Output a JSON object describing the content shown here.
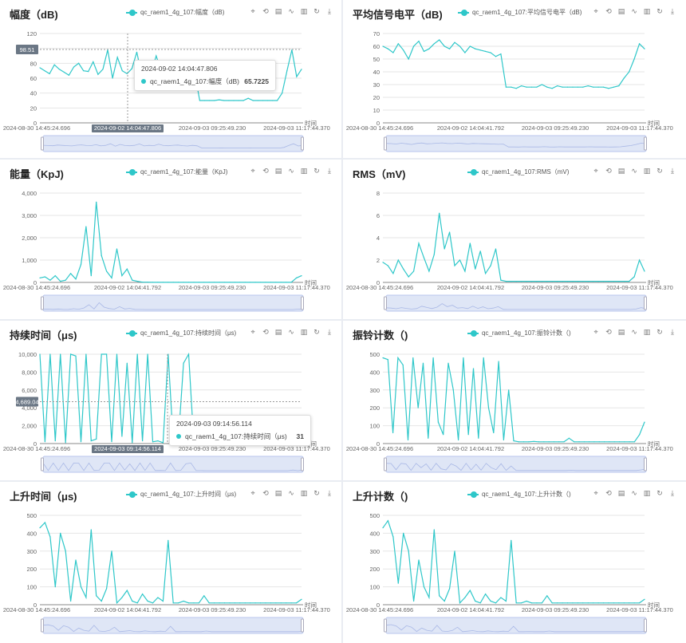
{
  "tools": [
    "zoom-icon",
    "zoom-reset-icon",
    "data-view-icon",
    "line-type-icon",
    "bar-type-icon",
    "restore-icon",
    "download-icon"
  ],
  "panels": [
    {
      "title": "幅度（dB)",
      "legend": "qc_raem1_4g_107:幅度（dB)",
      "y_ticks": [
        "120",
        "100",
        "80",
        "60",
        "40",
        "20",
        "0"
      ],
      "x_labels": [
        "2024-08-30 14:45:24.696",
        "2024-09-02 14:04:47.806",
        "2024-09-03 09:25:49.230",
        "2024-09-03 11:17:44.370"
      ],
      "x_axis_name": "时间",
      "pointer_value": "98.51",
      "tooltip": {
        "time": "2024-09-02 14:04:47.806",
        "series": "qc_raem1_4g_107:幅度（dB)",
        "value": "65.7225"
      }
    },
    {
      "title": "平均信号电平（dB)",
      "legend": "qc_raem1_4g_107:平均信号电平（dB)",
      "y_ticks": [
        "70",
        "60",
        "50",
        "40",
        "30",
        "20",
        "10",
        "0"
      ],
      "x_labels": [
        "2024-08-30 14:45:24.696",
        "2024-09-02 14:04:41.792",
        "2024-09-03 09:25:49.230",
        "2024-09-03 11:17:44.370"
      ],
      "x_axis_name": "时间"
    },
    {
      "title": "能量（KpJ)",
      "legend": "qc_raem1_4g_107:能量（KpJ)",
      "y_ticks": [
        "4,000",
        "3,000",
        "2,000",
        "1,000",
        "0"
      ],
      "x_labels": [
        "2024-08-30 14:45:24.696",
        "2024-09-02 14:04:41.792",
        "2024-09-03 09:25:49.230",
        "2024-09-03 11:17:44.370"
      ],
      "x_axis_name": "时间"
    },
    {
      "title": "RMS（mV)",
      "legend": "qc_raem1_4g_107:RMS（mV)",
      "y_ticks": [
        "8",
        "6",
        "4",
        "2",
        "0"
      ],
      "x_labels": [
        "2024-08-30 14:45:24.696",
        "2024-09-02 14:04:41.792",
        "2024-09-03 09:25:49.230",
        "2024-09-03 11:17:44.370"
      ],
      "x_axis_name": "时间"
    },
    {
      "title": "持续时间（μs)",
      "legend": "qc_raem1_4g_107:持续时间（μs)",
      "y_ticks": [
        "10,000",
        "8,000",
        "6,000",
        "4,000",
        "2,000",
        "0"
      ],
      "x_labels": [
        "2024-08-30 14:45:24.696",
        "2024-09-03 09:14:56.114",
        "2024-09-03 09:25:49.230",
        "2024-09-03 11:17:44.370"
      ],
      "x_axis_name": "时间",
      "pointer_value": "4,689.04",
      "tooltip": {
        "time": "2024-09-03 09:14:56.114",
        "series": "qc_raem1_4g_107:持续时间（μs)",
        "value": "31"
      }
    },
    {
      "title": "振铃计数（)",
      "legend": "qc_raem1_4g_107:振铃计数（)",
      "y_ticks": [
        "500",
        "400",
        "300",
        "200",
        "100",
        "0"
      ],
      "x_labels": [
        "2024-08-30 14:45:24.696",
        "2024-09-02 14:04:41.792",
        "2024-09-03 09:25:49.230",
        "2024-09-03 11:17:44.370"
      ],
      "x_axis_name": "时间"
    },
    {
      "title": "上升时间（μs)",
      "legend": "qc_raem1_4g_107:上升时间（μs)",
      "y_ticks": [
        "500",
        "400",
        "300",
        "200",
        "100",
        "0"
      ],
      "x_labels": [
        "2024-08-30 14:45:24.696",
        "2024-09-02 14:04:41.792",
        "2024-09-03 09:25:49.230",
        "2024-09-03 11:17:44.370"
      ],
      "x_axis_name": "时间"
    },
    {
      "title": "上升计数（)",
      "legend": "qc_raem1_4g_107:上升计数（)",
      "y_ticks": [
        "500",
        "400",
        "300",
        "200",
        "100",
        "0"
      ],
      "x_labels": [
        "2024-08-30 14:45:24.696",
        "2024-09-02 14:04:41.792",
        "2024-09-03 09:25:49.230",
        "2024-09-03 11:17:44.370"
      ],
      "x_axis_name": "时间"
    }
  ],
  "chart_data": [
    {
      "type": "line",
      "title": "幅度（dB)",
      "series": [
        {
          "name": "qc_raem1_4g_107:幅度（dB)",
          "values": [
            74,
            70,
            66,
            78,
            72,
            68,
            64,
            75,
            80,
            70,
            69,
            82,
            65,
            72,
            98,
            60,
            88,
            70,
            66,
            73,
            95,
            64,
            72,
            68,
            90,
            70,
            66,
            74,
            78,
            68,
            62,
            72,
            65,
            30,
            30,
            30,
            30,
            31,
            30,
            30,
            30,
            30,
            30,
            33,
            30,
            30,
            30,
            30,
            30,
            30,
            40,
            70,
            98,
            62,
            72
          ]
        }
      ],
      "ylim": [
        0,
        120
      ],
      "xlabel": "时间",
      "ylabel": ""
    },
    {
      "type": "line",
      "title": "平均信号电平（dB)",
      "series": [
        {
          "name": "qc_raem1_4g_107:平均信号电平（dB)",
          "values": [
            60,
            58,
            55,
            62,
            57,
            50,
            60,
            64,
            56,
            58,
            62,
            65,
            60,
            58,
            63,
            60,
            55,
            60,
            58,
            57,
            56,
            55,
            52,
            54,
            28,
            28,
            27,
            29,
            28,
            28,
            28,
            30,
            28,
            27,
            29,
            28,
            28,
            28,
            28,
            28,
            29,
            28,
            28,
            28,
            27,
            28,
            29,
            35,
            40,
            50,
            62,
            58
          ]
        }
      ],
      "ylim": [
        0,
        70
      ],
      "xlabel": "时间",
      "ylabel": ""
    },
    {
      "type": "line",
      "title": "能量（KpJ)",
      "series": [
        {
          "name": "qc_raem1_4g_107:能量（KpJ)",
          "values": [
            200,
            250,
            100,
            300,
            50,
            100,
            400,
            150,
            800,
            2500,
            300,
            3600,
            1200,
            500,
            200,
            1500,
            300,
            600,
            100,
            50,
            10,
            10,
            5,
            5,
            5,
            5,
            5,
            5,
            5,
            5,
            5,
            5,
            5,
            5,
            5,
            5,
            5,
            5,
            5,
            5,
            5,
            5,
            5,
            5,
            5,
            5,
            5,
            5,
            5,
            5,
            200,
            300
          ]
        }
      ],
      "ylim": [
        0,
        4000
      ],
      "xlabel": "时间",
      "ylabel": ""
    },
    {
      "type": "line",
      "title": "RMS（mV)",
      "series": [
        {
          "name": "qc_raem1_4g_107:RMS（mV)",
          "values": [
            1.8,
            1.5,
            0.8,
            2.0,
            1.2,
            0.5,
            1.0,
            3.5,
            2.2,
            1.0,
            2.5,
            6.2,
            3.0,
            4.5,
            1.5,
            2.0,
            1.0,
            3.5,
            1.2,
            2.8,
            0.8,
            1.5,
            3.0,
            0.2,
            0.1,
            0.1,
            0.1,
            0.1,
            0.1,
            0.1,
            0.1,
            0.1,
            0.1,
            0.1,
            0.1,
            0.1,
            0.1,
            0.1,
            0.1,
            0.1,
            0.1,
            0.1,
            0.1,
            0.1,
            0.1,
            0.1,
            0.1,
            0.1,
            0.1,
            0.5,
            2.0,
            1.0
          ]
        }
      ],
      "ylim": [
        0,
        8
      ],
      "xlabel": "时间",
      "ylabel": ""
    },
    {
      "type": "line",
      "title": "持续时间（μs)",
      "series": [
        {
          "name": "qc_raem1_4g_107:持续时间（μs)",
          "values": [
            10000,
            200,
            10000,
            300,
            10000,
            100,
            10000,
            9800,
            200,
            10000,
            300,
            500,
            10000,
            10000,
            200,
            10000,
            800,
            9000,
            100,
            10000,
            300,
            10000,
            200,
            300,
            100,
            10000,
            200,
            400,
            9000,
            10000,
            200,
            100,
            50,
            50,
            50,
            50,
            50,
            50,
            50,
            50,
            50,
            50,
            50,
            50,
            50,
            31,
            50,
            50,
            50,
            800,
            50,
            1200
          ]
        }
      ],
      "ylim": [
        0,
        10000
      ],
      "xlabel": "时间",
      "ylabel": ""
    },
    {
      "type": "line",
      "title": "振铃计数（)",
      "series": [
        {
          "name": "qc_raem1_4g_107:振铃计数（)",
          "values": [
            480,
            470,
            60,
            480,
            440,
            20,
            480,
            200,
            450,
            30,
            480,
            120,
            50,
            450,
            300,
            20,
            480,
            50,
            420,
            30,
            480,
            200,
            60,
            460,
            20,
            300,
            15,
            10,
            10,
            10,
            12,
            10,
            10,
            10,
            10,
            10,
            10,
            30,
            10,
            10,
            10,
            10,
            10,
            10,
            10,
            10,
            10,
            10,
            10,
            10,
            10,
            50,
            120
          ]
        }
      ],
      "ylim": [
        0,
        500
      ],
      "xlabel": "时间",
      "ylabel": ""
    },
    {
      "type": "line",
      "title": "上升时间（μs)",
      "series": [
        {
          "name": "qc_raem1_4g_107:上升时间（μs)",
          "values": [
            430,
            460,
            380,
            100,
            400,
            300,
            20,
            250,
            100,
            40,
            420,
            50,
            20,
            90,
            300,
            10,
            40,
            80,
            20,
            10,
            60,
            20,
            10,
            40,
            20,
            360,
            10,
            10,
            20,
            10,
            10,
            10,
            50,
            10,
            10,
            10,
            10,
            10,
            10,
            10,
            10,
            10,
            10,
            10,
            10,
            10,
            10,
            10,
            10,
            10,
            10,
            30
          ]
        }
      ],
      "ylim": [
        0,
        500
      ],
      "xlabel": "时间",
      "ylabel": ""
    },
    {
      "type": "line",
      "title": "上升计数（)",
      "series": [
        {
          "name": "qc_raem1_4g_107:上升计数（)",
          "values": [
            430,
            470,
            380,
            120,
            400,
            300,
            20,
            250,
            100,
            40,
            420,
            50,
            20,
            90,
            300,
            10,
            40,
            80,
            20,
            10,
            60,
            20,
            10,
            40,
            20,
            360,
            10,
            10,
            20,
            10,
            10,
            10,
            50,
            10,
            10,
            10,
            10,
            10,
            10,
            10,
            10,
            10,
            10,
            10,
            10,
            10,
            10,
            10,
            10,
            10,
            10,
            30
          ]
        }
      ],
      "ylim": [
        0,
        500
      ],
      "xlabel": "时间",
      "ylabel": ""
    }
  ]
}
